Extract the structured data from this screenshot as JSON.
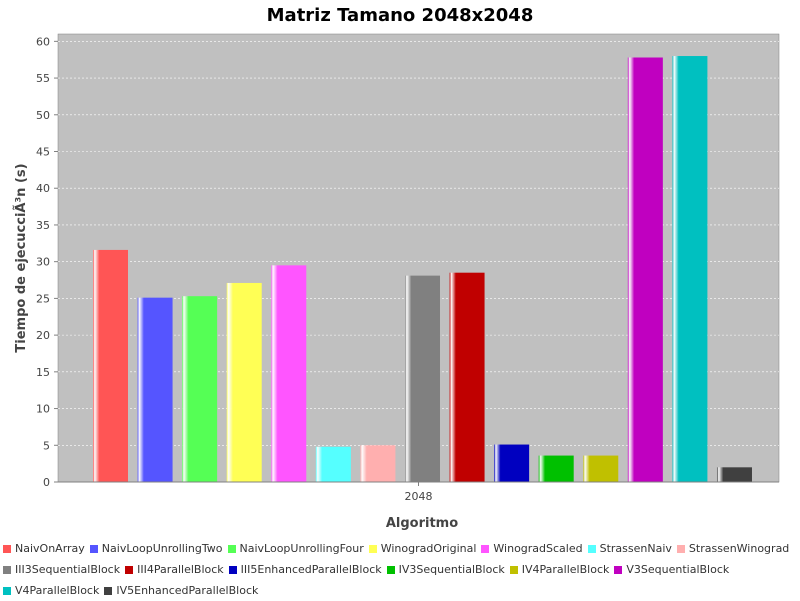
{
  "chart_data": {
    "type": "bar",
    "title": "Matriz Tamano 2048x2048",
    "xlabel": "Algoritmo",
    "ylabel": "Tiempo de ejecucciÃ³n (s)",
    "categories": [
      "2048"
    ],
    "ylim": [
      0,
      61
    ],
    "yticks": [
      0,
      5,
      10,
      15,
      20,
      25,
      30,
      35,
      40,
      45,
      50,
      55,
      60
    ],
    "grid": true,
    "legend_position": "bottom",
    "series": [
      {
        "name": "NaivOnArray",
        "values": [
          31.6
        ],
        "color": "#ff5555"
      },
      {
        "name": "NaivLoopUnrollingTwo",
        "values": [
          25.1
        ],
        "color": "#5555ff"
      },
      {
        "name": "NaivLoopUnrollingFour",
        "values": [
          25.3
        ],
        "color": "#55ff55"
      },
      {
        "name": "WinogradOriginal",
        "values": [
          27.1
        ],
        "color": "#ffff55"
      },
      {
        "name": "WinogradScaled",
        "values": [
          29.5
        ],
        "color": "#ff55ff"
      },
      {
        "name": "StrassenNaiv",
        "values": [
          4.8
        ],
        "color": "#55ffff"
      },
      {
        "name": "StrassenWinograd",
        "values": [
          5.0
        ],
        "color": "#ffafaf"
      },
      {
        "name": "III3SequentialBlock",
        "values": [
          28.1
        ],
        "color": "#808080"
      },
      {
        "name": "III4ParallelBlock",
        "values": [
          28.5
        ],
        "color": "#c00000"
      },
      {
        "name": "III5EnhancedParallelBlock",
        "values": [
          5.1
        ],
        "color": "#0000c0"
      },
      {
        "name": "IV3SequentialBlock",
        "values": [
          3.6
        ],
        "color": "#00c000"
      },
      {
        "name": "IV4ParallelBlock",
        "values": [
          3.6
        ],
        "color": "#c0c000"
      },
      {
        "name": "V3SequentialBlock",
        "values": [
          57.8
        ],
        "color": "#c000c0"
      },
      {
        "name": "V4ParallelBlock",
        "values": [
          58.0
        ],
        "color": "#00c0c0"
      },
      {
        "name": "IV5EnhancedParallelBlock",
        "values": [
          2.0
        ],
        "color": "#404040"
      }
    ],
    "legend_rows": [
      [
        0,
        1,
        2,
        3,
        4,
        5,
        6
      ],
      [
        7,
        8,
        9,
        10,
        11,
        12
      ],
      [
        13,
        14
      ]
    ]
  }
}
